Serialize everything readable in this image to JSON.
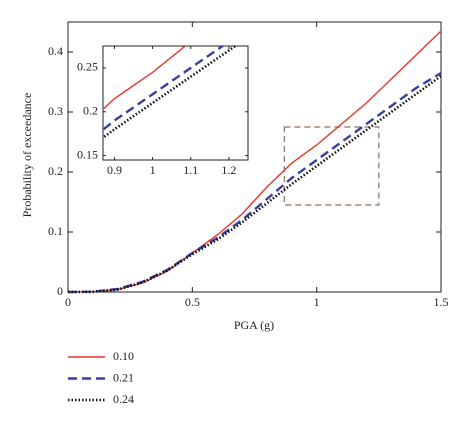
{
  "chart_data": {
    "type": "line",
    "xlabel": "PGA (g)",
    "ylabel": "Probability of exceedance",
    "x": [
      0,
      0.1,
      0.2,
      0.3,
      0.4,
      0.5,
      0.6,
      0.7,
      0.8,
      0.9,
      1.0,
      1.1,
      1.2,
      1.3,
      1.4,
      1.5
    ],
    "series": [
      {
        "name": "0.10",
        "color": "#e8352b",
        "dash": "solid",
        "values": [
          0,
          0.0005,
          0.004,
          0.015,
          0.035,
          0.065,
          0.095,
          0.13,
          0.175,
          0.215,
          0.245,
          0.28,
          0.315,
          0.355,
          0.395,
          0.435
        ]
      },
      {
        "name": "0.21",
        "color": "#3a3f9a",
        "dash": "dashed",
        "values": [
          0,
          0.0005,
          0.005,
          0.017,
          0.037,
          0.065,
          0.09,
          0.12,
          0.155,
          0.19,
          0.22,
          0.25,
          0.28,
          0.31,
          0.34,
          0.365
        ]
      },
      {
        "name": "0.24",
        "color": "#111111",
        "dash": "dotted",
        "values": [
          0,
          0.0004,
          0.004,
          0.016,
          0.036,
          0.063,
          0.087,
          0.116,
          0.148,
          0.18,
          0.21,
          0.24,
          0.27,
          0.3,
          0.33,
          0.36
        ]
      }
    ],
    "xlim": [
      0,
      1.5
    ],
    "ylim": [
      0,
      0.45
    ],
    "xticks": [
      0,
      0.5,
      1,
      1.5
    ],
    "yticks": [
      0,
      0.1,
      0.2,
      0.3,
      0.4
    ],
    "inset": {
      "xlim": [
        0.87,
        1.25
      ],
      "ylim": [
        0.145,
        0.275
      ],
      "xticks": [
        0.9,
        1,
        1.1,
        1.2
      ],
      "yticks": [
        0.15,
        0.2,
        0.25
      ]
    }
  }
}
